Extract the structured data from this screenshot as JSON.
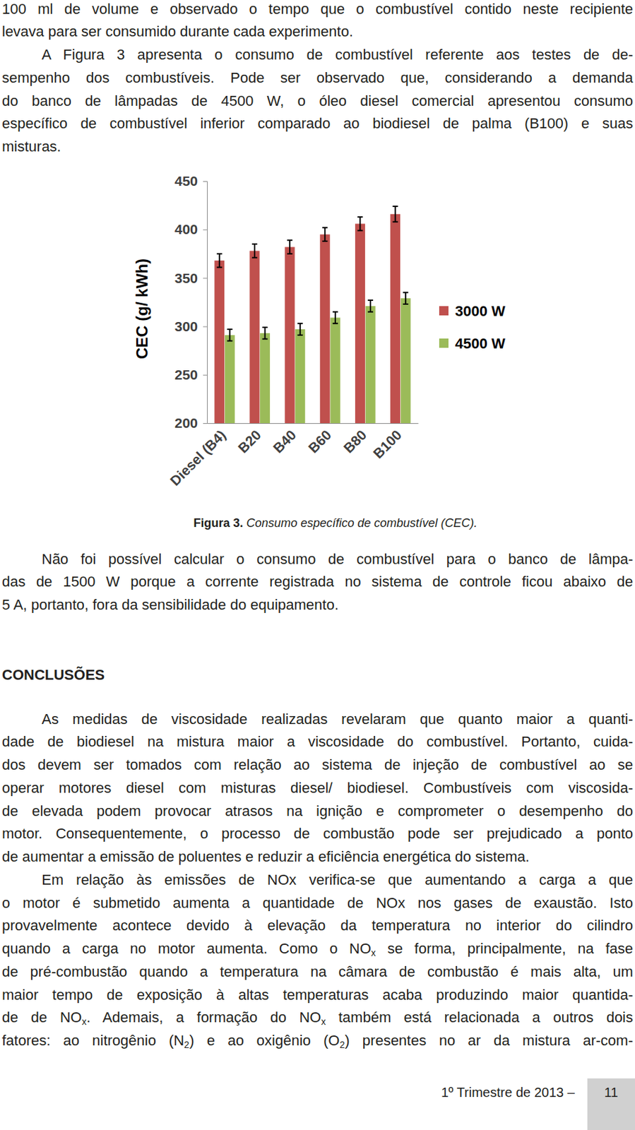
{
  "paragraphs_before": [
    {
      "lines": [
        [
          "100 ml de volume e observado o tempo que o combustível contido neste recipiente"
        ],
        [
          "levava para ser consumido durante cada experimento."
        ]
      ]
    },
    {
      "lines": [
        [
          "A Figura 3 apresenta o consumo de combustível referente aos testes de de-"
        ],
        [
          "sempenho dos combustíveis. Pode ser observado que, considerando a demanda"
        ],
        [
          "do banco de lâmpadas de 4500 W, o óleo diesel comercial apresentou consumo"
        ],
        [
          "específico de combustível inferior comparado ao biodiesel de palma (B100) e suas"
        ],
        [
          "misturas."
        ]
      ]
    }
  ],
  "chart_data": {
    "type": "bar",
    "y_label": "CEC (g/ kWh)",
    "categories": [
      "Diesel (B4)",
      "B20",
      "B40",
      "B60",
      "B80",
      "B100"
    ],
    "series": [
      {
        "name": "3000 W",
        "color": "#c0504d",
        "values": [
          368,
          378,
          382,
          395,
          406,
          416
        ],
        "errors": [
          7,
          7,
          7,
          7,
          7,
          8
        ]
      },
      {
        "name": "4500 W",
        "color": "#9bbb59",
        "values": [
          291,
          293,
          297,
          309,
          321,
          329
        ],
        "errors": [
          6,
          6,
          6,
          6,
          6,
          6
        ]
      }
    ],
    "ylim": [
      200,
      450
    ],
    "yticks": [
      200,
      250,
      300,
      350,
      400,
      450
    ],
    "grid": false,
    "legend": "right"
  },
  "caption": {
    "label": "Figura 3.",
    "text": "Consumo específico de combustível (CEC)."
  },
  "paragraphs_after": [
    {
      "lines": [
        [
          "Não foi possível calcular o consumo de combustível para o banco de lâmpa-"
        ],
        [
          "das de 1500 W porque a corrente registrada no sistema de controle ficou abaixo de"
        ],
        [
          "5 A, portanto, fora da sensibilidade do equipamento."
        ]
      ]
    }
  ],
  "conclusions": {
    "heading": "CONCLUSÕES",
    "paragraphs": [
      {
        "lines": [
          [
            "As medidas de viscosidade realizadas revelaram que quanto maior a quanti-"
          ],
          [
            "dade de biodiesel na mistura maior a viscosidade do combustível. Portanto, cuida-"
          ],
          [
            "dos devem ser tomados com relação ao sistema de injeção de combustível ao se"
          ],
          [
            "operar motores diesel com misturas diesel/ biodiesel. Combustíveis com viscosida-"
          ],
          [
            "de elevada podem provocar atrasos na ignição e comprometer o desempenho do"
          ],
          [
            "motor. Consequentemente, o processo de combustão pode ser prejudicado a ponto"
          ],
          [
            "de aumentar a emissão de poluentes e reduzir a eficiência energética do sistema."
          ]
        ]
      },
      {
        "lines": [
          [
            "Em relação às emissões de NOx verifica-se que aumentando a carga a que"
          ],
          [
            "o motor é submetido aumenta a quantidade de NOx nos gases de exaustão. Isto"
          ],
          [
            "provavelmente acontece devido à elevação da temperatura no interior do cilindro"
          ],
          [
            "quando a carga no motor aumenta. Como o NO",
            {
              "sub": "x"
            },
            " se forma, principalmente, na fase"
          ],
          [
            "de pré-combustão quando a temperatura na câmara de combustão é mais alta, um"
          ],
          [
            "maior tempo de exposição à altas temperaturas acaba produzindo maior quantida-"
          ],
          [
            "de de NO",
            {
              "sub": "x"
            },
            ". Ademais, a formação do NO",
            {
              "sub": "x"
            },
            " também está relacionada a outros dois"
          ],
          [
            "fatores: ao nitrogênio (N",
            {
              "sub": "2"
            },
            ") e ao oxigênio (O",
            {
              "sub": "2"
            },
            ")  presentes no ar da mistura ar-com-"
          ]
        ]
      }
    ]
  },
  "footer": {
    "issue": "1º Trimestre de 2013 –",
    "page": "11"
  }
}
